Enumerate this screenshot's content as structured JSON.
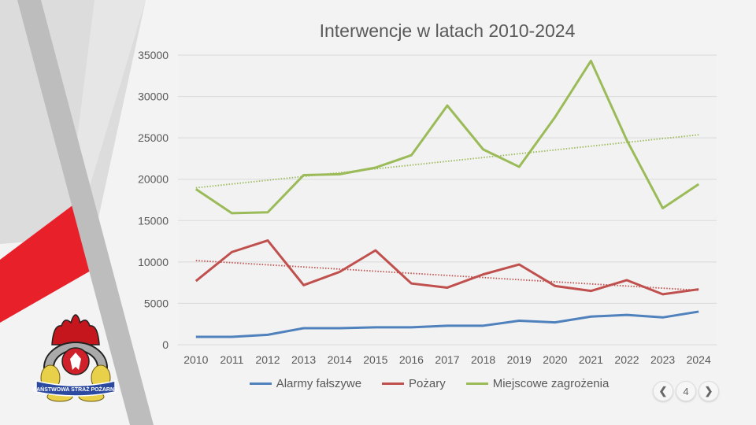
{
  "chart_data": {
    "type": "line",
    "title": "Interwencje w latach 2010-2024",
    "categories": [
      "2010",
      "2011",
      "2012",
      "2013",
      "2014",
      "2015",
      "2016",
      "2017",
      "2018",
      "2019",
      "2020",
      "2021",
      "2022",
      "2023",
      "2024"
    ],
    "ylim": [
      0,
      35000
    ],
    "yticks": [
      "0",
      "5000",
      "10000",
      "15000",
      "20000",
      "25000",
      "30000",
      "35000"
    ],
    "grid": true,
    "legend_position": "bottom",
    "trendline": "linear, dotted (Pożary, Miejscowe zagrożenia)",
    "series": [
      {
        "name": "Alarmy fałszywe",
        "color": "#4f81bd",
        "trend": false,
        "values": [
          950,
          950,
          1200,
          2000,
          2000,
          2100,
          2100,
          2300,
          2300,
          2900,
          2700,
          3400,
          3600,
          3300,
          4000
        ]
      },
      {
        "name": "Pożary",
        "color": "#c0504d",
        "trend": true,
        "values": [
          7700,
          11200,
          12600,
          7200,
          8800,
          11400,
          7400,
          6900,
          8500,
          9700,
          7100,
          6500,
          7800,
          6100,
          6700
        ]
      },
      {
        "name": "Miejscowe zagrożenia",
        "color": "#9bbb59",
        "trend": true,
        "values": [
          18800,
          15900,
          16000,
          20500,
          20600,
          21400,
          22900,
          28900,
          23600,
          21500,
          27500,
          34300,
          24700,
          16500,
          19400
        ]
      }
    ]
  },
  "logo": {
    "text": "PAŃSTWOWA STRAŻ POŻARNA"
  },
  "navigation": {
    "prev_icon": "chevron-left-icon",
    "page": "4",
    "next_icon": "chevron-right-icon"
  },
  "colors": {
    "accent_red": "#e8202a",
    "stripe_gray": "#c8c8c8"
  }
}
